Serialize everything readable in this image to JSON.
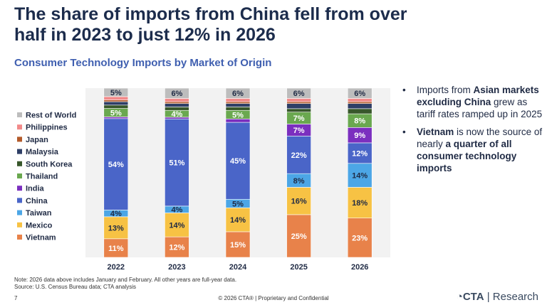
{
  "headline": "The share of imports from China fell from over half in 2023 to just 12% in 2026",
  "chart_data": {
    "type": "bar",
    "stacked": true,
    "title": "Consumer Technology Imports by Market of Origin",
    "categories": [
      "2022",
      "2023",
      "2024",
      "2025",
      "2026"
    ],
    "ylim": [
      0,
      100
    ],
    "legend_placement": "left",
    "series": [
      {
        "name": "Vietnam",
        "color": "#e8824a",
        "values": [
          11,
          12,
          15,
          25,
          23
        ],
        "labels": [
          "11%",
          "12%",
          "15%",
          "25%",
          "23%"
        ]
      },
      {
        "name": "Mexico",
        "color": "#f7c244",
        "values": [
          13,
          14,
          14,
          16,
          18
        ],
        "labels": [
          "13%",
          "14%",
          "14%",
          "16%",
          "18%"
        ]
      },
      {
        "name": "Taiwan",
        "color": "#4ca6e6",
        "values": [
          4,
          4,
          5,
          8,
          14
        ],
        "labels": [
          "4%",
          "4%",
          "5%",
          "8%",
          "14%"
        ]
      },
      {
        "name": "China",
        "color": "#4a65c8",
        "values": [
          54,
          51,
          45,
          22,
          12
        ],
        "labels": [
          "54%",
          "51%",
          "45%",
          "22%",
          "12%"
        ]
      },
      {
        "name": "India",
        "color": "#7b2fbf",
        "values": [
          1,
          1,
          2,
          7,
          9
        ],
        "labels": [
          "",
          "",
          "",
          "7%",
          "9%"
        ]
      },
      {
        "name": "Thailand",
        "color": "#6aa84f",
        "values": [
          5,
          4,
          5,
          7,
          8
        ],
        "labels": [
          "5%",
          "4%",
          "5%",
          "7%",
          "8%"
        ]
      },
      {
        "name": "South Korea",
        "color": "#38572b",
        "values": [
          2,
          2,
          2,
          2,
          3
        ],
        "labels": [
          "",
          "",
          "",
          "",
          ""
        ]
      },
      {
        "name": "Malaysia",
        "color": "#2e3e66",
        "values": [
          2,
          2,
          2,
          3,
          3
        ],
        "labels": [
          "",
          "",
          "",
          "",
          ""
        ]
      },
      {
        "name": "Japan",
        "color": "#b35a2a",
        "values": [
          1,
          1,
          1,
          1,
          1
        ],
        "labels": [
          "",
          "",
          "",
          "",
          ""
        ]
      },
      {
        "name": "Philippines",
        "color": "#f28a8a",
        "values": [
          2,
          2,
          2,
          2,
          2
        ],
        "labels": [
          "",
          "",
          "",
          "",
          ""
        ]
      },
      {
        "name": "Rest of World",
        "color": "#bdbdbd",
        "values": [
          5,
          6,
          6,
          6,
          6
        ],
        "labels": [
          "5%",
          "6%",
          "6%",
          "6%",
          "6%"
        ]
      }
    ]
  },
  "bullets": [
    [
      {
        "t": "Imports from ",
        "b": false
      },
      {
        "t": "Asian markets excluding China",
        "b": true
      },
      {
        "t": " grew as tariff rates ramped up in 2025",
        "b": false
      }
    ],
    [
      {
        "t": "Vietnam",
        "b": true
      },
      {
        "t": " is now the source of nearly ",
        "b": false
      },
      {
        "t": "a quarter of all consumer technology imports",
        "b": true
      }
    ]
  ],
  "bullet_symbol": "•",
  "note": "Note: 2026 data above includes January and February. All other years are full-year data.",
  "source": "Source: U.S. Census Bureau data; CTA analysis",
  "page_number": "7",
  "footer": "© 2026 CTA® | Proprietary and Confidential",
  "brand": {
    "symbol": "◔",
    "name": "CTA",
    "suffix": "Research"
  }
}
